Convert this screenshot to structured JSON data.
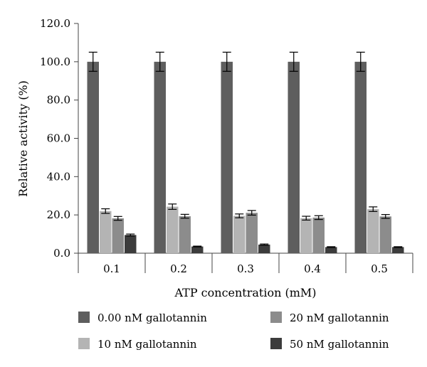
{
  "chart_data": {
    "type": "bar",
    "xlabel": "ATP concentration (mM)",
    "ylabel": "Relative activity (%)",
    "ylim": [
      0,
      120
    ],
    "yticks": [
      "0.0",
      "20.0",
      "40.0",
      "60.0",
      "80.0",
      "100.0",
      "120.0"
    ],
    "categories": [
      "0.1",
      "0.2",
      "0.3",
      "0.4",
      "0.5"
    ],
    "grid": false,
    "legend_position": "bottom",
    "series": [
      {
        "name": "0.00 nM gallotannin",
        "color": "#5e5e5e",
        "values": [
          100,
          100,
          100,
          100,
          100
        ],
        "errors": [
          5,
          5,
          5,
          5,
          5
        ]
      },
      {
        "name": "10 nM gallotannin",
        "color": "#b4b4b4",
        "values": [
          22,
          24.3,
          19.5,
          18.3,
          23
        ],
        "errors": [
          1.2,
          1.4,
          1.0,
          1.0,
          1.2
        ]
      },
      {
        "name": "20 nM gallotannin",
        "color": "#8c8c8c",
        "values": [
          18.2,
          19.3,
          21.1,
          18.6,
          19.2
        ],
        "errors": [
          1.0,
          1.0,
          1.2,
          1.0,
          1.0
        ]
      },
      {
        "name": "50 nM gallotannin",
        "color": "#3c3c3c",
        "values": [
          9.5,
          3.5,
          4.5,
          3.2,
          3.2
        ],
        "errors": [
          0.5,
          0.2,
          0.3,
          0.2,
          0.2
        ]
      }
    ]
  }
}
